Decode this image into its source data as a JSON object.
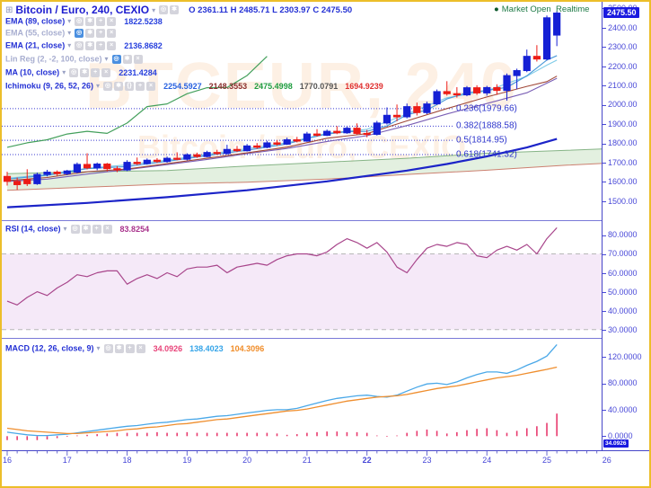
{
  "header": {
    "title": "Bitcoin / Euro, 240, CEXIO",
    "ohlc": "O 2361.11 H 2485.71 L 2303.97 C 2475.50",
    "market_status": "Market Open",
    "realtime": "Realtime"
  },
  "watermark": {
    "line1": "BTCEUR, 240",
    "line2": "Bitcoin / Euro, CEXIO"
  },
  "price_badge": "2475.50",
  "macd_badge": "34.0926",
  "indicators": [
    {
      "id": "ema89",
      "label": "EMA (89, close)",
      "value": "1822.5238",
      "disabled": false,
      "icons": [
        "eye",
        "gear",
        "plus",
        "close"
      ]
    },
    {
      "id": "ema55",
      "label": "EMA (55, close)",
      "value": "",
      "disabled": true,
      "icons": [
        "eye",
        "gear",
        "plus",
        "close"
      ],
      "active_icon": "eye"
    },
    {
      "id": "ema21",
      "label": "EMA (21, close)",
      "value": "2136.8682",
      "disabled": false,
      "icons": [
        "eye",
        "gear",
        "plus",
        "close"
      ]
    },
    {
      "id": "linreg",
      "label": "Lin Reg (2, -2, 100, close)",
      "value": "",
      "disabled": true,
      "icons": [
        "eye",
        "gear",
        "close"
      ],
      "active_icon": "eye"
    },
    {
      "id": "ma10",
      "label": "MA (10, close)",
      "value": "2231.4284",
      "disabled": false,
      "icons": [
        "eye",
        "gear",
        "plus",
        "close"
      ]
    },
    {
      "id": "ichimoku",
      "label": "Ichimoku (9, 26, 52, 26)",
      "values": [
        "2254.5927",
        "2148.3553",
        "2475.4998",
        "1770.0791",
        "1694.9239"
      ],
      "value_colors": [
        "#2962e0",
        "#8b2e2e",
        "#1f9d40",
        "#555555",
        "#e03131"
      ],
      "disabled": false,
      "icons": [
        "eye",
        "gear",
        "braces",
        "plus",
        "close"
      ]
    }
  ],
  "rsi_row": {
    "label": "RSI (14, close)",
    "value": "83.8254",
    "icons": [
      "eye",
      "gear",
      "plus",
      "close"
    ]
  },
  "macd_row": {
    "label": "MACD (12, 26, close, 9)",
    "values": [
      "34.0926",
      "138.4023",
      "104.3096"
    ],
    "value_colors": [
      "#e8447a",
      "#35a4e8",
      "#f08c28"
    ],
    "icons": [
      "eye",
      "gear",
      "plus",
      "close"
    ]
  },
  "fib_levels": [
    {
      "label": "0.236(1979.66)",
      "price": 1979.66
    },
    {
      "label": "0.382(1888.58)",
      "price": 1888.58
    },
    {
      "label": "0.5(1814.95)",
      "price": 1814.95
    },
    {
      "label": "0.618(1741.32)",
      "price": 1741.32
    }
  ],
  "axes": {
    "main_price_ticks": [
      "2500.00",
      "2400.00",
      "2300.00",
      "2200.00",
      "2100.00",
      "2000.00",
      "1900.00",
      "1800.00",
      "1700.00",
      "1600.00",
      "1500.00"
    ],
    "rsi_ticks": [
      "80.0000",
      "70.0000",
      "60.0000",
      "50.0000",
      "40.0000",
      "30.0000"
    ],
    "macd_ticks": [
      "120.0000",
      "80.0000",
      "40.0000",
      "0.0000"
    ],
    "time_ticks": [
      "16",
      "17",
      "18",
      "19",
      "20",
      "21",
      "22",
      "23",
      "24",
      "25",
      "26"
    ],
    "bold_time_tick": "22"
  },
  "colors": {
    "candle_up": "#1520d5",
    "candle_down": "#ed1c16",
    "tenkan": "#4f9bd8",
    "kijun": "#a04838",
    "ma10": "#7ecbe8",
    "ema21": "#7a5fb5",
    "ema89": "#1c24c8",
    "chikou": "#44a05c",
    "cloud_fill": "#dcecd8",
    "cloud_top": "#86b486",
    "cloud_bottom": "#cc8070",
    "fib_line": "#3b3bd0",
    "rsi_line": "#a8458b",
    "rsi_band": "#f5e9f8",
    "rsi_dash": "#b8b8b8",
    "macd_line": "#4aa8e8",
    "signal_line": "#ef8e2e",
    "histogram": "#e83a6e",
    "badge_bg": "#1b1be0",
    "status_green": "#1e7a46",
    "frame_border": "#ecbe2a"
  },
  "chart_data": {
    "type": "candlestick",
    "title": "Bitcoin / Euro, 240, CEXIO",
    "x_axis_days": [
      16,
      17,
      18,
      19,
      20,
      21,
      22,
      23,
      24,
      25,
      26
    ],
    "main_price_range": [
      1400,
      2534
    ],
    "rsi_range": [
      26,
      88
    ],
    "macd_range": [
      -20,
      148
    ],
    "candles_ohlc": [
      [
        1628,
        1652,
        1580,
        1602
      ],
      [
        1602,
        1622,
        1558,
        1585
      ],
      [
        1612,
        1665,
        1578,
        1590
      ],
      [
        1590,
        1648,
        1584,
        1638
      ],
      [
        1638,
        1662,
        1628,
        1650
      ],
      [
        1650,
        1659,
        1630,
        1642
      ],
      [
        1642,
        1662,
        1634,
        1656
      ],
      [
        1650,
        1700,
        1644,
        1690
      ],
      [
        1690,
        1748,
        1664,
        1672
      ],
      [
        1672,
        1700,
        1660,
        1692
      ],
      [
        1692,
        1698,
        1654,
        1668
      ],
      [
        1668,
        1681,
        1650,
        1661
      ],
      [
        1661,
        1712,
        1655,
        1701
      ],
      [
        1701,
        1726,
        1687,
        1694
      ],
      [
        1694,
        1721,
        1689,
        1712
      ],
      [
        1712,
        1723,
        1697,
        1705
      ],
      [
        1705,
        1731,
        1699,
        1722
      ],
      [
        1722,
        1753,
        1711,
        1717
      ],
      [
        1717,
        1748,
        1711,
        1740
      ],
      [
        1740,
        1751,
        1724,
        1731
      ],
      [
        1731,
        1761,
        1727,
        1752
      ],
      [
        1752,
        1766,
        1739,
        1747
      ],
      [
        1747,
        1792,
        1741,
        1768
      ],
      [
        1768,
        1786,
        1754,
        1761
      ],
      [
        1761,
        1796,
        1757,
        1786
      ],
      [
        1786,
        1801,
        1771,
        1779
      ],
      [
        1779,
        1813,
        1774,
        1802
      ],
      [
        1802,
        1816,
        1787,
        1795
      ],
      [
        1795,
        1829,
        1791,
        1818
      ],
      [
        1818,
        1833,
        1804,
        1811
      ],
      [
        1811,
        1859,
        1807,
        1848
      ],
      [
        1848,
        1873,
        1834,
        1841
      ],
      [
        1841,
        1871,
        1837,
        1862
      ],
      [
        1862,
        1889,
        1847,
        1854
      ],
      [
        1854,
        1886,
        1849,
        1878
      ],
      [
        1878,
        1903,
        1844,
        1851
      ],
      [
        1851,
        1869,
        1831,
        1846
      ],
      [
        1846,
        1916,
        1840,
        1905
      ],
      [
        1905,
        1986,
        1897,
        1945
      ],
      [
        1945,
        2001,
        1914,
        1937
      ],
      [
        1937,
        2006,
        1929,
        1990
      ],
      [
        1990,
        2011,
        1944,
        1959
      ],
      [
        1959,
        2016,
        1951,
        2004
      ],
      [
        2004,
        2079,
        1999,
        2068
      ],
      [
        2068,
        2122,
        2047,
        2057
      ],
      [
        2057,
        2091,
        2037,
        2051
      ],
      [
        2051,
        2097,
        2044,
        2088
      ],
      [
        2088,
        2101,
        2051,
        2061
      ],
      [
        2061,
        2098,
        2047,
        2089
      ],
      [
        2089,
        2106,
        2051,
        2074
      ],
      [
        2074,
        2162,
        2021,
        2151
      ],
      [
        2151,
        2187,
        2081,
        2177
      ],
      [
        2177,
        2286,
        2169,
        2251
      ],
      [
        2251,
        2309,
        2224,
        2237
      ],
      [
        2237,
        2463,
        2230,
        2451
      ],
      [
        2361.11,
        2485.71,
        2303.97,
        2475.5
      ]
    ],
    "overlays": {
      "ichimoku_cloud": {
        "senkou_a": [
          [
            0,
            1642
          ],
          [
            8,
            1652
          ],
          [
            16,
            1658
          ],
          [
            24,
            1682
          ],
          [
            32,
            1702
          ],
          [
            40,
            1722
          ],
          [
            48,
            1748
          ],
          [
            56,
            1763
          ],
          [
            59.5,
            1770
          ]
        ],
        "senkou_b": [
          [
            0,
            1556
          ],
          [
            8,
            1572
          ],
          [
            16,
            1588
          ],
          [
            24,
            1598
          ],
          [
            32,
            1614
          ],
          [
            40,
            1638
          ],
          [
            48,
            1660
          ],
          [
            56,
            1686
          ],
          [
            59.5,
            1695
          ]
        ]
      },
      "lines": [
        {
          "name": "ema89",
          "width": 2.2,
          "points": [
            [
              0,
              1468
            ],
            [
              8,
              1490
            ],
            [
              16,
              1520
            ],
            [
              24,
              1556
            ],
            [
              32,
              1602
            ],
            [
              40,
              1658
            ],
            [
              44,
              1692
            ],
            [
              48,
              1732
            ],
            [
              52,
              1778
            ],
            [
              55,
              1822.5
            ]
          ]
        },
        {
          "name": "chikou",
          "width": 1.2,
          "points": [
            [
              0,
              1779
            ],
            [
              2,
              1802
            ],
            [
              4,
              1818
            ],
            [
              6,
              1848
            ],
            [
              8,
              1862
            ],
            [
              10,
              1851
            ],
            [
              12,
              1905
            ],
            [
              14,
              1990
            ],
            [
              16,
              2004
            ],
            [
              18,
              2057
            ],
            [
              20,
              2088
            ],
            [
              22,
              2089
            ],
            [
              24,
              2151
            ],
            [
              26,
              2251
            ]
          ]
        },
        {
          "name": "ema21",
          "width": 1.1,
          "points": [
            [
              0,
              1602
            ],
            [
              4,
              1614
            ],
            [
              8,
              1640
            ],
            [
              12,
              1663
            ],
            [
              16,
              1689
            ],
            [
              20,
              1716
            ],
            [
              24,
              1746
            ],
            [
              28,
              1773
            ],
            [
              32,
              1809
            ],
            [
              36,
              1839
            ],
            [
              40,
              1892
            ],
            [
              44,
              1952
            ],
            [
              48,
              2006
            ],
            [
              52,
              2062
            ],
            [
              55,
              2136.9
            ]
          ]
        },
        {
          "name": "kijun",
          "width": 1.1,
          "points": [
            [
              0,
              1606
            ],
            [
              4,
              1622
            ],
            [
              8,
              1652
            ],
            [
              12,
              1666
            ],
            [
              16,
              1694
            ],
            [
              20,
              1722
            ],
            [
              24,
              1750
            ],
            [
              28,
              1780
            ],
            [
              32,
              1826
            ],
            [
              36,
              1850
            ],
            [
              40,
              1916
            ],
            [
              44,
              1980
            ],
            [
              48,
              2040
            ],
            [
              52,
              2095
            ],
            [
              54,
              2120
            ],
            [
              55,
              2148.4
            ]
          ]
        },
        {
          "name": "ma10",
          "width": 1.1,
          "points": [
            [
              0,
              1618
            ],
            [
              4,
              1638
            ],
            [
              8,
              1670
            ],
            [
              12,
              1688
            ],
            [
              16,
              1712
            ],
            [
              20,
              1742
            ],
            [
              24,
              1772
            ],
            [
              28,
              1802
            ],
            [
              32,
              1852
            ],
            [
              36,
              1872
            ],
            [
              40,
              1952
            ],
            [
              44,
              2036
            ],
            [
              48,
              2072
            ],
            [
              52,
              2148
            ],
            [
              54,
              2205
            ],
            [
              55,
              2231.4
            ]
          ]
        },
        {
          "name": "tenkan",
          "width": 1.2,
          "points": [
            [
              0,
              1614
            ],
            [
              4,
              1634
            ],
            [
              8,
              1668
            ],
            [
              12,
              1679
            ],
            [
              16,
              1706
            ],
            [
              20,
              1736
            ],
            [
              24,
              1764
            ],
            [
              28,
              1796
            ],
            [
              30,
              1824
            ],
            [
              32,
              1848
            ],
            [
              34,
              1860
            ],
            [
              36,
              1862
            ],
            [
              38,
              1890
            ],
            [
              40,
              1948
            ],
            [
              42,
              1972
            ],
            [
              44,
              2030
            ],
            [
              46,
              2062
            ],
            [
              48,
              2074
            ],
            [
              50,
              2090
            ],
            [
              52,
              2150
            ],
            [
              54,
              2232
            ],
            [
              55,
              2254.6
            ]
          ]
        }
      ]
    },
    "rsi": {
      "overbought": 70,
      "oversold": 30,
      "values": [
        45,
        43,
        47,
        50,
        48,
        52,
        55,
        59,
        58,
        60,
        61,
        61,
        54,
        57,
        59,
        57,
        60,
        58,
        62,
        63,
        63,
        64,
        60,
        63,
        64,
        65,
        64,
        67,
        69,
        70,
        70,
        69,
        71,
        75,
        78,
        76,
        73,
        76,
        71,
        63,
        60,
        67,
        73,
        75,
        74,
        76,
        75,
        69,
        68,
        72,
        74,
        72,
        75,
        70,
        78,
        83.8
      ]
    },
    "macd": {
      "macd": [
        6,
        4,
        2,
        1,
        1,
        2,
        3,
        5,
        7,
        9,
        11,
        13,
        15,
        16,
        18,
        20,
        21,
        23,
        25,
        26,
        28,
        30,
        31,
        33,
        35,
        37,
        39,
        40,
        40,
        42,
        46,
        50,
        54,
        57,
        59,
        61,
        62,
        60,
        59,
        62,
        68,
        74,
        79,
        80,
        78,
        82,
        88,
        93,
        97,
        97,
        95,
        100,
        107,
        113,
        121,
        138.4
      ],
      "signal": [
        12,
        10,
        8,
        7,
        6,
        5,
        4,
        4,
        5,
        6,
        7,
        8,
        10,
        11,
        13,
        14,
        16,
        18,
        19,
        21,
        23,
        25,
        26,
        28,
        30,
        32,
        34,
        36,
        38,
        39,
        41,
        44,
        47,
        50,
        53,
        55,
        57,
        59,
        60,
        61,
        63,
        66,
        69,
        72,
        74,
        76,
        79,
        82,
        85,
        88,
        90,
        92,
        95,
        98,
        101,
        104.3
      ],
      "histogram": [
        -6,
        -6,
        -6,
        -6,
        -5,
        -3,
        -1,
        1,
        2,
        3,
        4,
        5,
        5,
        5,
        5,
        6,
        5,
        5,
        6,
        5,
        5,
        5,
        5,
        5,
        5,
        5,
        5,
        4,
        2,
        3,
        5,
        6,
        7,
        7,
        6,
        6,
        5,
        1,
        -1,
        1,
        5,
        8,
        10,
        8,
        4,
        6,
        9,
        11,
        12,
        9,
        5,
        8,
        12,
        15,
        20,
        34.1
      ]
    }
  }
}
